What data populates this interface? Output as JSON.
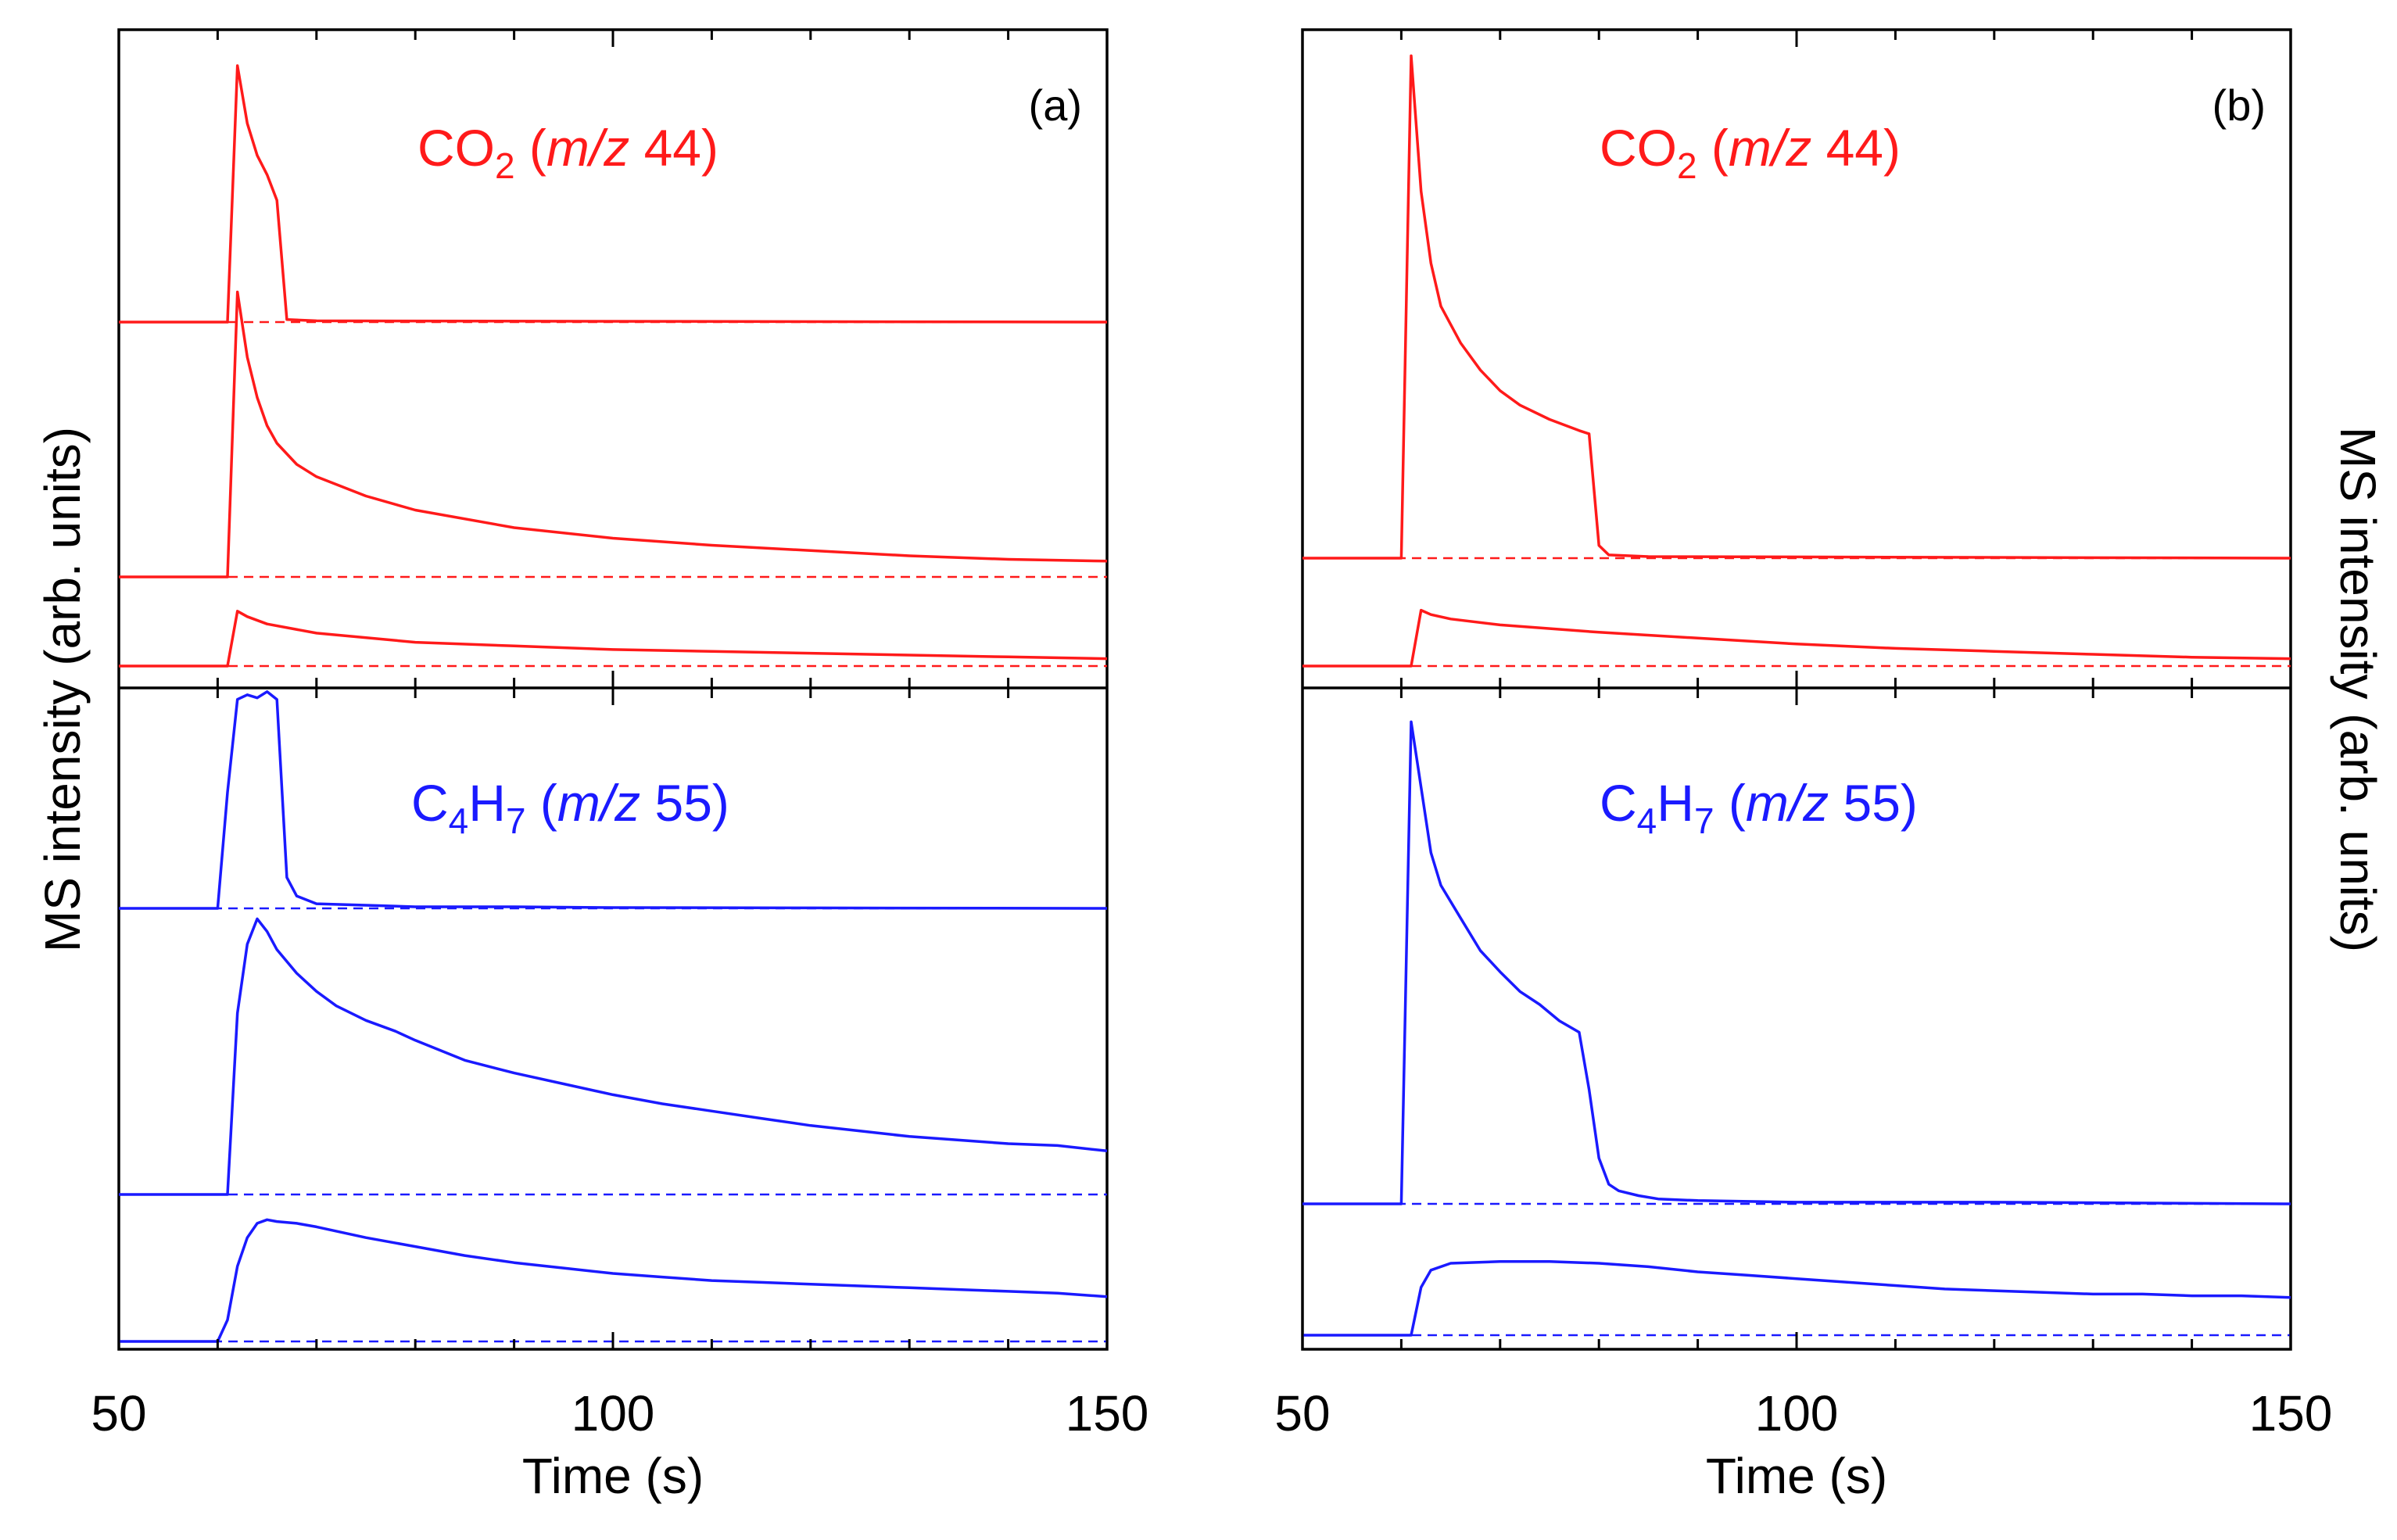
{
  "chart_data": [
    {
      "panel": "(a)",
      "type": "line",
      "xlabel": "Time (s)",
      "ylabel": "MS intensity (arb. units)",
      "xlim": [
        50,
        150
      ],
      "xticks": [
        50,
        100,
        150
      ],
      "colors": {
        "co2": "#ff1a1a",
        "c4h7": "#1a1aff"
      },
      "groups": [
        {
          "species": "CO2",
          "label": {
            "base": "CO",
            "sub": "2",
            "open": " (",
            "mz": "m/z",
            "num": " 44)"
          },
          "color_key": "co2",
          "series": [
            {
              "name": "CO2 trace 1",
              "points": [
                [
                  50,
                  0
                ],
                [
                  61,
                  0
                ],
                [
                  62,
                  2.0
                ],
                [
                  63,
                  1.55
                ],
                [
                  64,
                  1.3
                ],
                [
                  65,
                  1.15
                ],
                [
                  66,
                  0.95
                ],
                [
                  67,
                  0.02
                ],
                [
                  70,
                  0.01
                ],
                [
                  150,
                  0
                ]
              ]
            },
            {
              "name": "CO2 trace 2",
              "points": [
                [
                  50,
                  0
                ],
                [
                  61,
                  0
                ],
                [
                  62,
                  1.62
                ],
                [
                  63,
                  1.25
                ],
                [
                  64,
                  1.02
                ],
                [
                  65,
                  0.86
                ],
                [
                  66,
                  0.76
                ],
                [
                  68,
                  0.64
                ],
                [
                  70,
                  0.57
                ],
                [
                  75,
                  0.46
                ],
                [
                  80,
                  0.38
                ],
                [
                  90,
                  0.28
                ],
                [
                  100,
                  0.22
                ],
                [
                  110,
                  0.18
                ],
                [
                  120,
                  0.15
                ],
                [
                  130,
                  0.12
                ],
                [
                  140,
                  0.1
                ],
                [
                  150,
                  0.09
                ]
              ]
            },
            {
              "name": "CO2 trace 3",
              "points": [
                [
                  50,
                  0
                ],
                [
                  61,
                  0
                ],
                [
                  62,
                  0.3
                ],
                [
                  63,
                  0.27
                ],
                [
                  65,
                  0.23
                ],
                [
                  70,
                  0.18
                ],
                [
                  80,
                  0.13
                ],
                [
                  90,
                  0.11
                ],
                [
                  100,
                  0.09
                ],
                [
                  110,
                  0.08
                ],
                [
                  120,
                  0.07
                ],
                [
                  130,
                  0.06
                ],
                [
                  140,
                  0.05
                ],
                [
                  150,
                  0.04
                ]
              ]
            }
          ]
        },
        {
          "species": "C4H7",
          "label": {
            "base": "C",
            "sub": "4",
            "base2": "H",
            "sub2": "7",
            "open": " (",
            "mz": "m/z",
            "num": " 55)"
          },
          "color_key": "c4h7",
          "series": [
            {
              "name": "C4H7 trace 1",
              "points": [
                [
                  50,
                  0
                ],
                [
                  60,
                  0
                ],
                [
                  61,
                  0.75
                ],
                [
                  62,
                  1.35
                ],
                [
                  63,
                  1.38
                ],
                [
                  64,
                  1.36
                ],
                [
                  65,
                  1.4
                ],
                [
                  66,
                  1.35
                ],
                [
                  67,
                  0.2
                ],
                [
                  68,
                  0.08
                ],
                [
                  70,
                  0.03
                ],
                [
                  75,
                  0.02
                ],
                [
                  80,
                  0.01
                ],
                [
                  90,
                  0.01
                ],
                [
                  100,
                  0.005
                ],
                [
                  120,
                  0.003
                ],
                [
                  150,
                  0
                ]
              ]
            },
            {
              "name": "C4H7 trace 2",
              "points": [
                [
                  50,
                  0
                ],
                [
                  61,
                  0
                ],
                [
                  62,
                  1.0
                ],
                [
                  63,
                  1.38
                ],
                [
                  64,
                  1.52
                ],
                [
                  65,
                  1.45
                ],
                [
                  66,
                  1.35
                ],
                [
                  68,
                  1.22
                ],
                [
                  70,
                  1.12
                ],
                [
                  72,
                  1.04
                ],
                [
                  75,
                  0.96
                ],
                [
                  78,
                  0.9
                ],
                [
                  80,
                  0.85
                ],
                [
                  85,
                  0.74
                ],
                [
                  90,
                  0.67
                ],
                [
                  95,
                  0.61
                ],
                [
                  100,
                  0.55
                ],
                [
                  105,
                  0.5
                ],
                [
                  110,
                  0.46
                ],
                [
                  115,
                  0.42
                ],
                [
                  120,
                  0.38
                ],
                [
                  125,
                  0.35
                ],
                [
                  130,
                  0.32
                ],
                [
                  135,
                  0.3
                ],
                [
                  140,
                  0.28
                ],
                [
                  145,
                  0.27
                ],
                [
                  150,
                  0.24
                ]
              ]
            },
            {
              "name": "C4H7 trace 3",
              "points": [
                [
                  50,
                  0
                ],
                [
                  60,
                  0
                ],
                [
                  61,
                  0.12
                ],
                [
                  62,
                  0.42
                ],
                [
                  63,
                  0.58
                ],
                [
                  64,
                  0.66
                ],
                [
                  65,
                  0.68
                ],
                [
                  66,
                  0.67
                ],
                [
                  68,
                  0.66
                ],
                [
                  70,
                  0.64
                ],
                [
                  75,
                  0.58
                ],
                [
                  80,
                  0.53
                ],
                [
                  85,
                  0.48
                ],
                [
                  90,
                  0.44
                ],
                [
                  95,
                  0.41
                ],
                [
                  100,
                  0.38
                ],
                [
                  105,
                  0.36
                ],
                [
                  110,
                  0.34
                ],
                [
                  115,
                  0.33
                ],
                [
                  120,
                  0.32
                ],
                [
                  125,
                  0.31
                ],
                [
                  130,
                  0.3
                ],
                [
                  135,
                  0.29
                ],
                [
                  140,
                  0.28
                ],
                [
                  145,
                  0.27
                ],
                [
                  150,
                  0.25
                ]
              ]
            }
          ]
        }
      ]
    },
    {
      "panel": "(b)",
      "type": "line",
      "xlabel": "Time (s)",
      "ylabel": "MS intensity (arb. units)",
      "xlim": [
        50,
        150
      ],
      "xticks": [
        50,
        100,
        150
      ],
      "colors": {
        "co2": "#ff1a1a",
        "c4h7": "#1a1aff"
      },
      "groups": [
        {
          "species": "CO2",
          "label": {
            "base": "CO",
            "sub": "2",
            "open": " (",
            "mz": "m/z",
            "num": " 44)"
          },
          "color_key": "co2",
          "series": [
            {
              "name": "CO2 trace 1",
              "points": [
                [
                  50,
                  0
                ],
                [
                  60,
                  0
                ],
                [
                  61,
                  3.15
                ],
                [
                  62,
                  2.3
                ],
                [
                  63,
                  1.85
                ],
                [
                  64,
                  1.58
                ],
                [
                  66,
                  1.35
                ],
                [
                  68,
                  1.18
                ],
                [
                  70,
                  1.05
                ],
                [
                  72,
                  0.96
                ],
                [
                  75,
                  0.87
                ],
                [
                  78,
                  0.8
                ],
                [
                  79,
                  0.78
                ],
                [
                  80,
                  0.08
                ],
                [
                  81,
                  0.02
                ],
                [
                  85,
                  0.01
                ],
                [
                  150,
                  0
                ]
              ]
            },
            {
              "name": "CO2 trace 2",
              "points": [
                [
                  50,
                  0
                ],
                [
                  61,
                  0
                ],
                [
                  62,
                  0.38
                ],
                [
                  63,
                  0.35
                ],
                [
                  65,
                  0.32
                ],
                [
                  70,
                  0.28
                ],
                [
                  80,
                  0.23
                ],
                [
                  90,
                  0.19
                ],
                [
                  100,
                  0.15
                ],
                [
                  110,
                  0.12
                ],
                [
                  120,
                  0.1
                ],
                [
                  130,
                  0.08
                ],
                [
                  140,
                  0.06
                ],
                [
                  150,
                  0.05
                ]
              ]
            }
          ]
        },
        {
          "species": "C4H7",
          "label": {
            "base": "C",
            "sub": "4",
            "base2": "H",
            "sub2": "7",
            "open": " (",
            "mz": "m/z",
            "num": " 55)"
          },
          "color_key": "c4h7",
          "series": [
            {
              "name": "C4H7 trace 1",
              "points": [
                [
                  50,
                  0
                ],
                [
                  60,
                  0
                ],
                [
                  61,
                  2.95
                ],
                [
                  62,
                  2.55
                ],
                [
                  63,
                  2.15
                ],
                [
                  64,
                  1.95
                ],
                [
                  66,
                  1.75
                ],
                [
                  68,
                  1.55
                ],
                [
                  70,
                  1.42
                ],
                [
                  72,
                  1.3
                ],
                [
                  74,
                  1.22
                ],
                [
                  76,
                  1.12
                ],
                [
                  78,
                  1.05
                ],
                [
                  79,
                  0.7
                ],
                [
                  80,
                  0.28
                ],
                [
                  81,
                  0.12
                ],
                [
                  82,
                  0.08
                ],
                [
                  84,
                  0.05
                ],
                [
                  86,
                  0.03
                ],
                [
                  90,
                  0.02
                ],
                [
                  100,
                  0.01
                ],
                [
                  120,
                  0.01
                ],
                [
                  150,
                  0
                ]
              ]
            },
            {
              "name": "C4H7 trace 2",
              "points": [
                [
                  50,
                  0
                ],
                [
                  61,
                  0
                ],
                [
                  62,
                  0.28
                ],
                [
                  63,
                  0.38
                ],
                [
                  65,
                  0.42
                ],
                [
                  70,
                  0.43
                ],
                [
                  75,
                  0.43
                ],
                [
                  80,
                  0.42
                ],
                [
                  85,
                  0.4
                ],
                [
                  90,
                  0.37
                ],
                [
                  95,
                  0.35
                ],
                [
                  100,
                  0.33
                ],
                [
                  105,
                  0.31
                ],
                [
                  110,
                  0.29
                ],
                [
                  115,
                  0.27
                ],
                [
                  120,
                  0.26
                ],
                [
                  125,
                  0.25
                ],
                [
                  130,
                  0.24
                ],
                [
                  135,
                  0.24
                ],
                [
                  140,
                  0.23
                ],
                [
                  145,
                  0.23
                ],
                [
                  150,
                  0.22
                ]
              ]
            }
          ]
        }
      ]
    }
  ]
}
